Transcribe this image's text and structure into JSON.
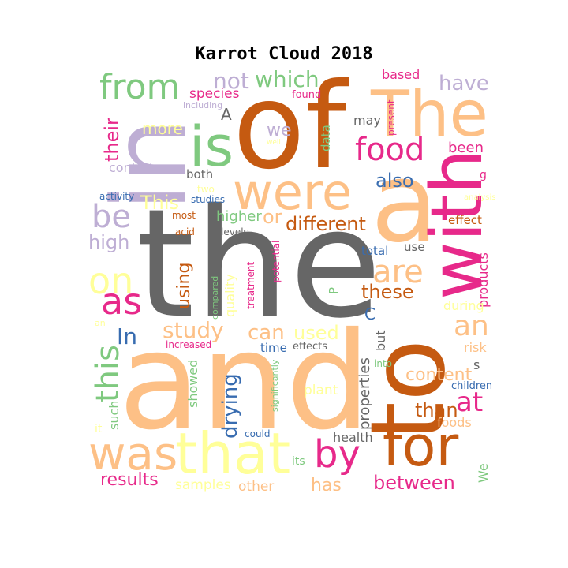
{
  "title": "Karrot Cloud 2018",
  "palette": {
    "orange": "#C55A11",
    "peach": "#FDC086",
    "pink": "#E7298A",
    "lavender": "#BEAED4",
    "green": "#7FC97F",
    "yellow": "#FFFF99",
    "blue": "#386CB0",
    "gray": "#666666"
  },
  "words": [
    {
      "text": "the",
      "color": "gray"
    },
    {
      "text": "and",
      "color": "peach"
    },
    {
      "text": "of",
      "color": "orange"
    },
    {
      "text": "to",
      "color": "orange"
    },
    {
      "text": "in",
      "color": "lavender"
    },
    {
      "text": "a",
      "color": "peach"
    },
    {
      "text": "with",
      "color": "pink"
    },
    {
      "text": "The",
      "color": "peach"
    },
    {
      "text": "is",
      "color": "green"
    },
    {
      "text": "were",
      "color": "peach"
    },
    {
      "text": "that",
      "color": "yellow"
    },
    {
      "text": "for",
      "color": "orange"
    },
    {
      "text": "was",
      "color": "peach"
    },
    {
      "text": "by",
      "color": "pink"
    },
    {
      "text": "from",
      "color": "green"
    },
    {
      "text": "as",
      "color": "pink"
    },
    {
      "text": "food",
      "color": "pink"
    },
    {
      "text": "on",
      "color": "yellow"
    },
    {
      "text": "are",
      "color": "peach"
    },
    {
      "text": "be",
      "color": "lavender"
    },
    {
      "text": "this",
      "color": "green"
    },
    {
      "text": "an",
      "color": "peach"
    },
    {
      "text": "at",
      "color": "pink"
    },
    {
      "text": "their",
      "color": "pink"
    },
    {
      "text": "which",
      "color": "green"
    },
    {
      "text": "not",
      "color": "lavender"
    },
    {
      "text": "have",
      "color": "lavender"
    },
    {
      "text": "different",
      "color": "orange"
    },
    {
      "text": "study",
      "color": "peach"
    },
    {
      "text": "can",
      "color": "peach"
    },
    {
      "text": "used",
      "color": "yellow"
    },
    {
      "text": "In",
      "color": "blue"
    },
    {
      "text": "also",
      "color": "blue"
    },
    {
      "text": "This",
      "color": "yellow"
    },
    {
      "text": "or",
      "color": "peach"
    },
    {
      "text": "high",
      "color": "lavender"
    },
    {
      "text": "using",
      "color": "orange"
    },
    {
      "text": "these",
      "color": "orange"
    },
    {
      "text": "drying",
      "color": "blue"
    },
    {
      "text": "results",
      "color": "pink"
    },
    {
      "text": "between",
      "color": "pink"
    },
    {
      "text": "than",
      "color": "orange"
    },
    {
      "text": "content",
      "color": "peach"
    },
    {
      "text": "has",
      "color": "peach"
    },
    {
      "text": "more",
      "color": "yellow"
    },
    {
      "text": "we",
      "color": "lavender"
    },
    {
      "text": "higher",
      "color": "green"
    },
    {
      "text": "species",
      "color": "pink"
    },
    {
      "text": "been",
      "color": "pink"
    },
    {
      "text": "products",
      "color": "pink"
    },
    {
      "text": "properties",
      "color": "gray"
    },
    {
      "text": "quality",
      "color": "yellow"
    },
    {
      "text": "showed",
      "color": "green"
    },
    {
      "text": "such",
      "color": "green"
    },
    {
      "text": "samples",
      "color": "yellow"
    },
    {
      "text": "other",
      "color": "peach"
    },
    {
      "text": "plant",
      "color": "yellow"
    },
    {
      "text": "health",
      "color": "gray"
    },
    {
      "text": "foods",
      "color": "peach"
    },
    {
      "text": "We",
      "color": "green"
    },
    {
      "text": "control",
      "color": "lavender"
    },
    {
      "text": "both",
      "color": "gray"
    },
    {
      "text": "may",
      "color": "gray"
    },
    {
      "text": "based",
      "color": "pink"
    },
    {
      "text": "found",
      "color": "pink"
    },
    {
      "text": "data",
      "color": "green"
    },
    {
      "text": "present",
      "color": "pink"
    },
    {
      "text": "total",
      "color": "blue"
    },
    {
      "text": "use",
      "color": "gray"
    },
    {
      "text": "effect",
      "color": "orange"
    },
    {
      "text": "during",
      "color": "yellow"
    },
    {
      "text": "risk",
      "color": "peach"
    },
    {
      "text": "s",
      "color": "gray"
    },
    {
      "text": "children",
      "color": "blue"
    },
    {
      "text": "time",
      "color": "blue"
    },
    {
      "text": "effects",
      "color": "gray"
    },
    {
      "text": "increased",
      "color": "pink"
    },
    {
      "text": "but",
      "color": "gray"
    },
    {
      "text": "C",
      "color": "blue"
    },
    {
      "text": "P",
      "color": "green"
    },
    {
      "text": "into",
      "color": "green"
    },
    {
      "text": "could",
      "color": "blue"
    },
    {
      "text": "its",
      "color": "green"
    },
    {
      "text": "significantly",
      "color": "green"
    },
    {
      "text": "potential",
      "color": "pink"
    },
    {
      "text": "treatment",
      "color": "pink"
    },
    {
      "text": "compared",
      "color": "green"
    },
    {
      "text": "studies",
      "color": "blue"
    },
    {
      "text": "two",
      "color": "yellow"
    },
    {
      "text": "activity",
      "color": "blue"
    },
    {
      "text": "most",
      "color": "orange"
    },
    {
      "text": "acid",
      "color": "orange"
    },
    {
      "text": "levels",
      "color": "gray"
    },
    {
      "text": "A",
      "color": "gray"
    },
    {
      "text": "including",
      "color": "lavender"
    },
    {
      "text": "well",
      "color": "yellow"
    },
    {
      "text": "g",
      "color": "pink"
    },
    {
      "text": "analysis",
      "color": "yellow"
    },
    {
      "text": "it",
      "color": "yellow"
    },
    {
      "text": "an",
      "color": "yellow"
    }
  ]
}
